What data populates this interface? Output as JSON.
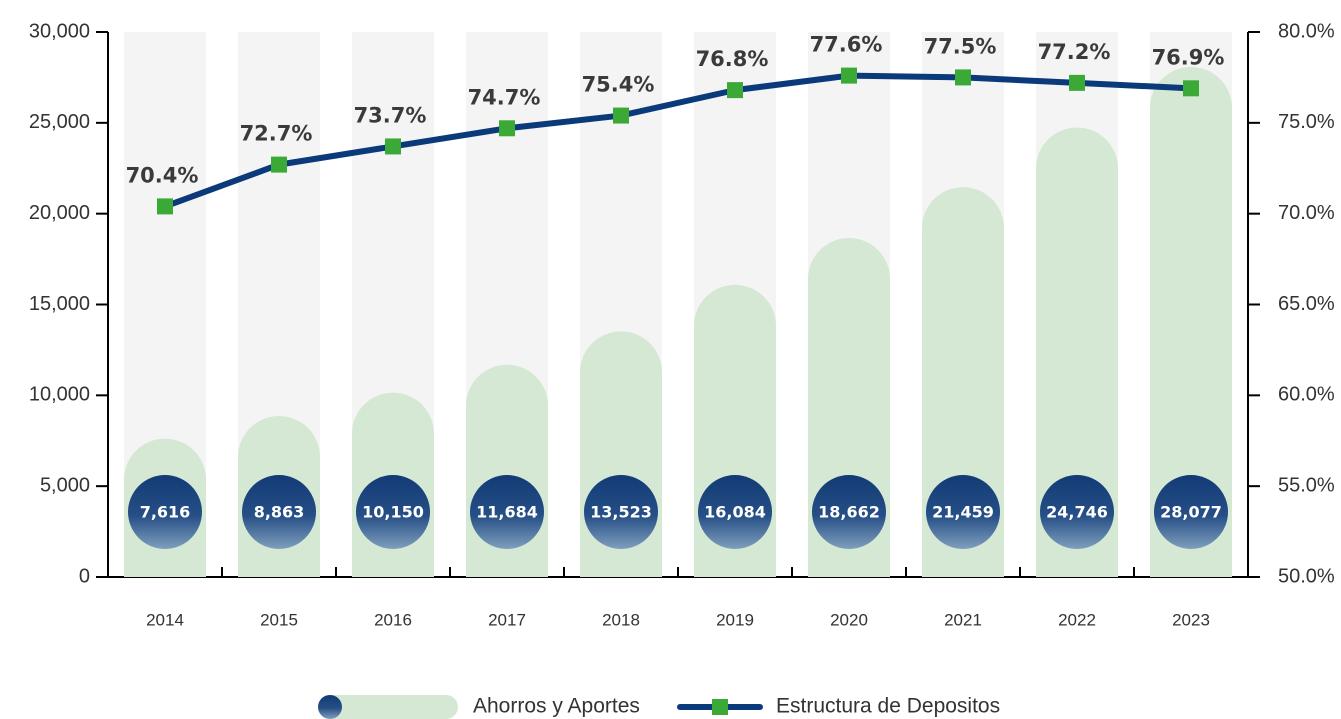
{
  "chart_data": {
    "type": "bar",
    "categories": [
      "2014",
      "2015",
      "2016",
      "2017",
      "2018",
      "2019",
      "2020",
      "2021",
      "2022",
      "2023"
    ],
    "series": [
      {
        "name": "Ahorros y Aportes",
        "type": "bar",
        "color": "#d5e8d4",
        "values": [
          7616,
          8863,
          10150,
          11684,
          13523,
          16084,
          18662,
          21459,
          24746,
          28077
        ],
        "value_labels": [
          "7,616",
          "8,863",
          "10,150",
          "11,684",
          "13,523",
          "16,084",
          "18,662",
          "21,459",
          "24,746",
          "28,077"
        ]
      },
      {
        "name": "Estructura de Depositos",
        "type": "line",
        "axis": "y2",
        "color": "#0a3a7a",
        "marker_color": "#3aa935",
        "values": [
          70.4,
          72.7,
          73.7,
          74.7,
          75.4,
          76.8,
          77.6,
          77.5,
          77.2,
          76.9
        ],
        "value_labels": [
          "70.4%",
          "72.7%",
          "73.7%",
          "74.7%",
          "75.4%",
          "76.8%",
          "77.6%",
          "77.5%",
          "77.2%",
          "76.9%"
        ]
      }
    ],
    "ylim": [
      0,
      30000
    ],
    "yticks": [
      0,
      {
        "value": 5000,
        "label": "5,000"
      },
      {
        "value": 10000,
        "label": "10,000"
      },
      {
        "value": 15000,
        "label": "15,000"
      },
      {
        "value": 20000,
        "label": "20,000"
      },
      {
        "value": 25000,
        "label": "25,000"
      },
      {
        "value": 30000,
        "label": "30,000"
      }
    ],
    "y2lim": [
      50,
      80
    ],
    "y2ticks": [
      {
        "value": 50,
        "label": "50.0%"
      },
      {
        "value": 55,
        "label": "55.0%"
      },
      {
        "value": 60,
        "label": "60.0%"
      },
      {
        "value": 65,
        "label": "65.0%"
      },
      {
        "value": 70,
        "label": "70.0%"
      },
      {
        "value": 75,
        "label": "75.0%"
      },
      {
        "value": 80,
        "label": "80.0%"
      }
    ],
    "legend": "bottom"
  }
}
